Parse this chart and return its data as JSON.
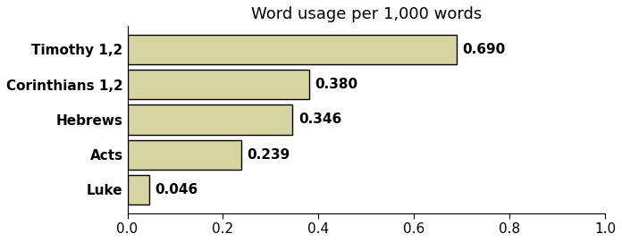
{
  "title": "Word usage per 1,000 words",
  "categories": [
    "Timothy 1,2",
    "Corinthians 1,2",
    "Hebrews",
    "Acts",
    "Luke"
  ],
  "values": [
    0.69,
    0.38,
    0.346,
    0.239,
    0.046
  ],
  "bar_color": "#d6d4a0",
  "bar_edge_color": "#000000",
  "bar_edge_width": 1.0,
  "xlim": [
    0.0,
    1.0
  ],
  "xticks": [
    0.0,
    0.2,
    0.4,
    0.6,
    0.8,
    1.0
  ],
  "title_fontsize": 13,
  "label_fontsize": 11,
  "tick_fontsize": 11,
  "value_fontsize": 11,
  "value_color": "#000000",
  "background_color": "#ffffff",
  "figsize": [
    6.96,
    2.71
  ],
  "dpi": 100
}
